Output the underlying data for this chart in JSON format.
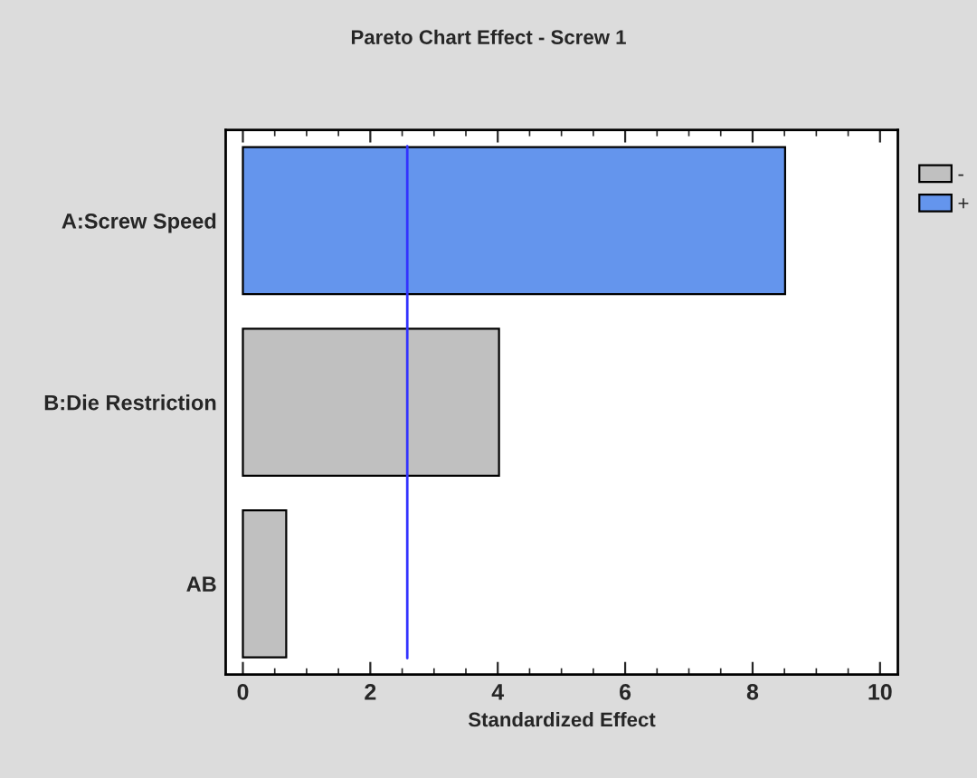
{
  "chart_data": {
    "type": "bar",
    "orientation": "horizontal",
    "title": "Pareto Chart Effect - Screw 1",
    "xlabel": "Standardized Effect",
    "categories": [
      "A:Screw Speed",
      "B:Die Restriction",
      "AB"
    ],
    "series": [
      {
        "name": "-",
        "color": "#c0c0c0",
        "values": [
          null,
          4.02,
          0.68
        ]
      },
      {
        "name": "+",
        "color": "#6495ed",
        "values": [
          8.51,
          null,
          null
        ]
      }
    ],
    "xlim": [
      -0.27,
      10.28
    ],
    "xticks": [
      0,
      2,
      4,
      6,
      8,
      10
    ],
    "ref_lines": [
      {
        "axis": "x",
        "value": 2.58,
        "color": "#3333ff"
      }
    ],
    "grid": false,
    "legend": "right"
  }
}
